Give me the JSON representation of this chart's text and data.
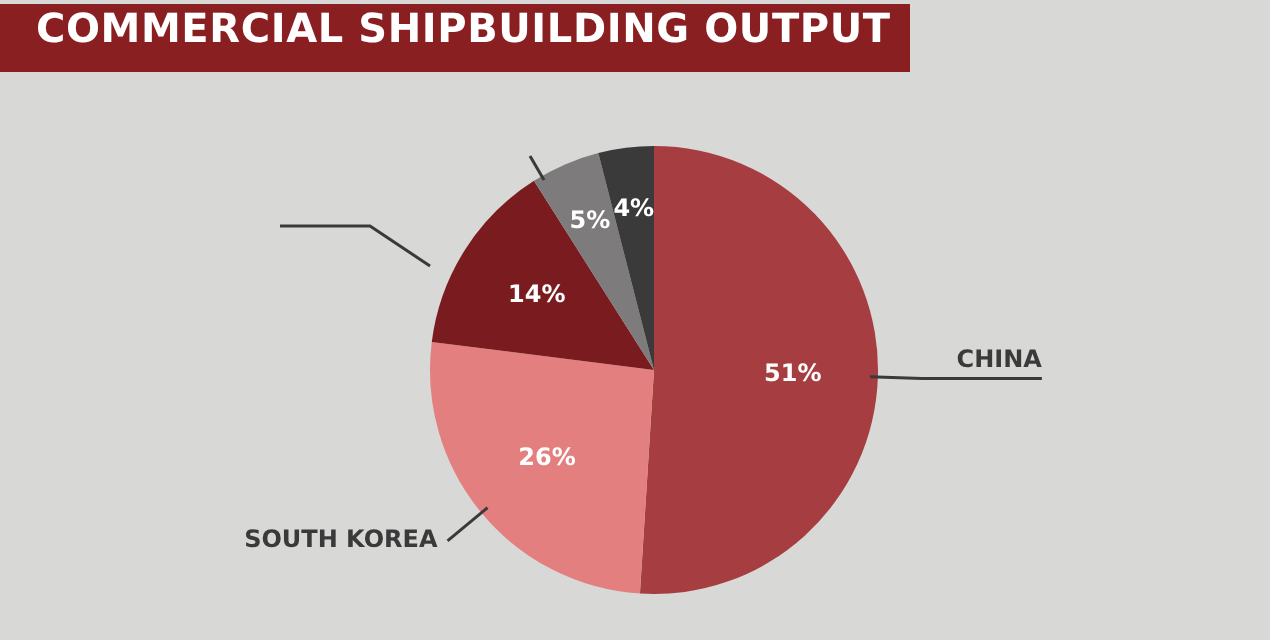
{
  "chart_data": {
    "type": "pie",
    "title": "COMMERCIAL SHIPBUILDING OUTPUT",
    "categories": [
      "CHINA",
      "SOUTH KOREA",
      null,
      null,
      null
    ],
    "values": [
      51,
      26,
      14,
      5,
      4
    ],
    "colors": [
      "#a63d40",
      "#e47f80",
      "#7a1c1f",
      "#7d7b7b",
      "#3b3a3a"
    ],
    "value_labels": [
      "51%",
      "26%",
      "14%",
      "5%",
      "4%"
    ],
    "legend": false
  }
}
